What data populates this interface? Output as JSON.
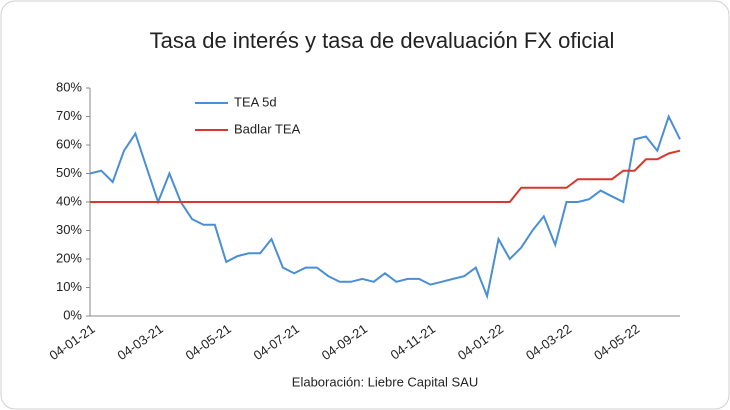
{
  "chart_data": {
    "type": "line",
    "title": "Tasa de interés y tasa de devaluación FX oficial",
    "footer": "Elaboración: Liebre Capital SAU",
    "categories": [
      "04-01-21",
      null,
      null,
      null,
      null,
      null,
      "04-03-21",
      null,
      null,
      null,
      null,
      null,
      "04-05-21",
      null,
      null,
      null,
      null,
      null,
      "04-07-21",
      null,
      null,
      null,
      null,
      null,
      "04-09-21",
      null,
      null,
      null,
      null,
      null,
      "04-11-21",
      null,
      null,
      null,
      null,
      null,
      "04-01-22",
      null,
      null,
      null,
      null,
      null,
      "04-03-22",
      null,
      null,
      null,
      null,
      null,
      "04-05-22",
      null,
      null,
      null,
      null
    ],
    "series": [
      {
        "name": "TEA 5d",
        "color": "#4a8fd6",
        "values": [
          50,
          51,
          47,
          58,
          64,
          52,
          40,
          50,
          40,
          34,
          32,
          32,
          19,
          21,
          22,
          22,
          27,
          17,
          15,
          17,
          17,
          14,
          12,
          12,
          13,
          12,
          15,
          12,
          13,
          13,
          11,
          12,
          13,
          14,
          17,
          7,
          27,
          20,
          24,
          30,
          35,
          25,
          40,
          40,
          41,
          44,
          42,
          40,
          62,
          63,
          58,
          70,
          62
        ]
      },
      {
        "name": "Badlar TEA",
        "color": "#d6382c",
        "values": [
          40,
          40,
          40,
          40,
          40,
          40,
          40,
          40,
          40,
          40,
          40,
          40,
          40,
          40,
          40,
          40,
          40,
          40,
          40,
          40,
          40,
          40,
          40,
          40,
          40,
          40,
          40,
          40,
          40,
          40,
          40,
          40,
          40,
          40,
          40,
          40,
          40,
          40,
          45,
          45,
          45,
          45,
          45,
          48,
          48,
          48,
          48,
          51,
          51,
          55,
          55,
          57,
          58
        ]
      }
    ],
    "ylim": [
      0,
      80
    ],
    "yticks": [
      {
        "value": 0,
        "label": "0%"
      },
      {
        "value": 10,
        "label": "10%"
      },
      {
        "value": 20,
        "label": "20%"
      },
      {
        "value": 30,
        "label": "30%"
      },
      {
        "value": 40,
        "label": "40%"
      },
      {
        "value": 50,
        "label": "50%"
      },
      {
        "value": 60,
        "label": "60%"
      },
      {
        "value": 70,
        "label": "70%"
      },
      {
        "value": 80,
        "label": "80%"
      }
    ],
    "grid": false,
    "legend": "top-left"
  }
}
